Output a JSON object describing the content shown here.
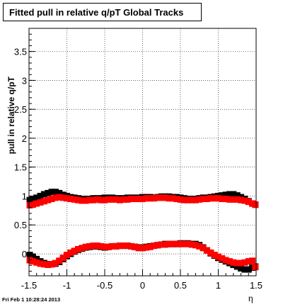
{
  "title": "Fitted pull in relative q/pT  Global Tracks",
  "footer": "Fri Feb  1 10:28:24 2013",
  "chart_data": {
    "type": "scatter",
    "title": "Fitted pull in relative q/pT  Global Tracks",
    "xlabel": "η",
    "ylabel": "pull in relative q/pT",
    "xlim": [
      -1.5,
      1.5
    ],
    "ylim": [
      -0.38,
      3.9
    ],
    "grid": true,
    "x_ticks": [
      "-1.5",
      "-1",
      "-0.5",
      "0",
      "0.5",
      "1",
      "1.5"
    ],
    "y_ticks": [
      "0",
      "0.5",
      "1",
      "1.5",
      "2",
      "2.5",
      "3",
      "3.5"
    ],
    "series": [
      {
        "color": "#000000",
        "marker": "square",
        "points_x": [
          -1.49,
          -1.45,
          -1.4,
          -1.35,
          -1.3,
          -1.25,
          -1.2,
          -1.15,
          -1.1,
          -1.05,
          -1.0,
          -0.95,
          -0.9,
          -0.85,
          -0.8,
          -0.75,
          -0.7,
          -0.65,
          -0.6,
          -0.55,
          -0.5,
          -0.45,
          -0.4,
          -0.35,
          -0.3,
          -0.25,
          -0.2,
          -0.15,
          -0.1,
          -0.05,
          0.0,
          0.05,
          0.1,
          0.15,
          0.2,
          0.25,
          0.3,
          0.35,
          0.4,
          0.45,
          0.5,
          0.55,
          0.6,
          0.65,
          0.7,
          0.75,
          0.8,
          0.85,
          0.9,
          0.95,
          1.0,
          1.05,
          1.1,
          1.15,
          1.2,
          1.25,
          1.3,
          1.35,
          1.4,
          1.45,
          1.49
        ],
        "points_y": [
          0.93,
          0.94,
          0.97,
          1.0,
          1.03,
          1.05,
          1.07,
          1.07,
          1.05,
          1.02,
          1.0,
          0.98,
          0.97,
          0.96,
          0.95,
          0.95,
          0.95,
          0.96,
          0.96,
          0.96,
          0.97,
          0.97,
          0.97,
          0.96,
          0.96,
          0.96,
          0.97,
          0.97,
          0.97,
          0.97,
          0.98,
          0.98,
          0.98,
          0.97,
          0.98,
          0.99,
          0.99,
          0.99,
          0.98,
          0.98,
          0.97,
          0.96,
          0.95,
          0.95,
          0.95,
          0.96,
          0.97,
          0.97,
          0.98,
          0.99,
          1.0,
          1.01,
          1.02,
          1.03,
          1.03,
          1.01,
          0.98,
          0.95,
          0.91,
          0.87,
          0.85
        ]
      },
      {
        "color": "#ff0000",
        "marker": "square",
        "points_x": [
          -1.49,
          -1.45,
          -1.4,
          -1.35,
          -1.3,
          -1.25,
          -1.2,
          -1.15,
          -1.1,
          -1.05,
          -1.0,
          -0.95,
          -0.9,
          -0.85,
          -0.8,
          -0.75,
          -0.7,
          -0.65,
          -0.6,
          -0.55,
          -0.5,
          -0.45,
          -0.4,
          -0.35,
          -0.3,
          -0.25,
          -0.2,
          -0.15,
          -0.1,
          -0.05,
          0.0,
          0.05,
          0.1,
          0.15,
          0.2,
          0.25,
          0.3,
          0.35,
          0.4,
          0.45,
          0.5,
          0.55,
          0.6,
          0.65,
          0.7,
          0.75,
          0.8,
          0.85,
          0.9,
          0.95,
          1.0,
          1.05,
          1.1,
          1.15,
          1.2,
          1.25,
          1.3,
          1.35,
          1.4,
          1.45,
          1.49
        ],
        "points_y": [
          0.84,
          0.85,
          0.87,
          0.89,
          0.91,
          0.93,
          0.95,
          0.97,
          0.98,
          0.97,
          0.96,
          0.95,
          0.94,
          0.93,
          0.92,
          0.92,
          0.93,
          0.93,
          0.94,
          0.93,
          0.93,
          0.94,
          0.94,
          0.94,
          0.93,
          0.94,
          0.94,
          0.95,
          0.95,
          0.95,
          0.95,
          0.96,
          0.96,
          0.96,
          0.97,
          0.97,
          0.97,
          0.96,
          0.96,
          0.95,
          0.94,
          0.93,
          0.93,
          0.93,
          0.93,
          0.94,
          0.95,
          0.95,
          0.96,
          0.96,
          0.96,
          0.95,
          0.95,
          0.94,
          0.94,
          0.94,
          0.93,
          0.92,
          0.9,
          0.87,
          0.85
        ]
      },
      {
        "color": "#000000",
        "marker": "square",
        "points_x": [
          -1.49,
          -1.45,
          -1.4,
          -1.35,
          -1.3,
          -1.25,
          -1.2,
          -1.15,
          -1.1,
          -1.05,
          -1.0,
          -0.95,
          -0.9,
          -0.85,
          -0.8,
          -0.75,
          -0.7,
          -0.65,
          -0.6,
          -0.55,
          -0.5,
          -0.45,
          -0.4,
          -0.35,
          -0.3,
          -0.25,
          -0.2,
          -0.15,
          -0.1,
          -0.05,
          0.0,
          0.05,
          0.1,
          0.15,
          0.2,
          0.25,
          0.3,
          0.35,
          0.4,
          0.45,
          0.5,
          0.55,
          0.6,
          0.65,
          0.7,
          0.75,
          0.8,
          0.85,
          0.9,
          0.95,
          1.0,
          1.05,
          1.1,
          1.15,
          1.2,
          1.25,
          1.3,
          1.35,
          1.4,
          1.45,
          1.49
        ],
        "points_y": [
          -0.02,
          -0.05,
          -0.09,
          -0.13,
          -0.16,
          -0.18,
          -0.18,
          -0.17,
          -0.14,
          -0.09,
          -0.04,
          0.0,
          0.04,
          0.07,
          0.09,
          0.11,
          0.12,
          0.13,
          0.13,
          0.12,
          0.11,
          0.12,
          0.13,
          0.13,
          0.14,
          0.14,
          0.14,
          0.13,
          0.12,
          0.11,
          0.11,
          0.12,
          0.13,
          0.14,
          0.15,
          0.16,
          0.17,
          0.17,
          0.17,
          0.17,
          0.18,
          0.18,
          0.18,
          0.17,
          0.17,
          0.15,
          0.11,
          0.06,
          0.01,
          -0.03,
          -0.07,
          -0.1,
          -0.13,
          -0.16,
          -0.19,
          -0.22,
          -0.25,
          -0.27,
          -0.27,
          -0.24,
          -0.22
        ]
      },
      {
        "color": "#ff0000",
        "marker": "square",
        "points_x": [
          -1.49,
          -1.45,
          -1.4,
          -1.35,
          -1.3,
          -1.25,
          -1.2,
          -1.15,
          -1.1,
          -1.05,
          -1.0,
          -0.95,
          -0.9,
          -0.85,
          -0.8,
          -0.75,
          -0.7,
          -0.65,
          -0.6,
          -0.55,
          -0.5,
          -0.45,
          -0.4,
          -0.35,
          -0.3,
          -0.25,
          -0.2,
          -0.15,
          -0.1,
          -0.05,
          0.0,
          0.05,
          0.1,
          0.15,
          0.2,
          0.25,
          0.3,
          0.35,
          0.4,
          0.45,
          0.5,
          0.55,
          0.6,
          0.65,
          0.7,
          0.75,
          0.8,
          0.85,
          0.9,
          0.95,
          1.0,
          1.05,
          1.1,
          1.15,
          1.2,
          1.25,
          1.3,
          1.35,
          1.4,
          1.45,
          1.49
        ],
        "points_y": [
          -0.11,
          -0.13,
          -0.15,
          -0.17,
          -0.18,
          -0.19,
          -0.18,
          -0.16,
          -0.12,
          -0.07,
          -0.02,
          0.02,
          0.05,
          0.08,
          0.1,
          0.12,
          0.13,
          0.14,
          0.14,
          0.13,
          0.12,
          0.12,
          0.13,
          0.13,
          0.14,
          0.14,
          0.14,
          0.13,
          0.12,
          0.1,
          0.1,
          0.11,
          0.12,
          0.14,
          0.15,
          0.16,
          0.16,
          0.17,
          0.17,
          0.17,
          0.17,
          0.17,
          0.17,
          0.16,
          0.15,
          0.13,
          0.1,
          0.06,
          0.02,
          -0.02,
          -0.05,
          -0.08,
          -0.11,
          -0.13,
          -0.15,
          -0.16,
          -0.16,
          -0.15,
          -0.13,
          -0.12,
          -0.23
        ]
      }
    ]
  }
}
